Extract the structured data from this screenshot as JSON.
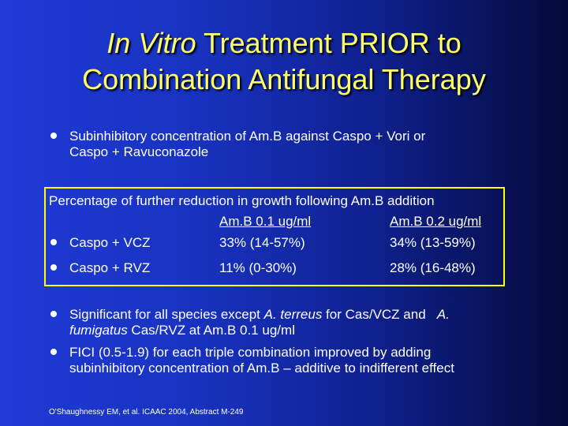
{
  "title": {
    "italic": "In Vitro",
    "line1_rest": " Treatment PRIOR to",
    "line2": "Combination Antifungal Therapy"
  },
  "bullet1": {
    "line1": "Subinhibitory concentration of Am.B against Caspo + Vori or",
    "line2": "Caspo + Ravuconazole"
  },
  "table": {
    "heading": "Percentage of further reduction in growth following Am.B addition",
    "columns": [
      "Am.B 0.1 ug/ml",
      "Am.B 0.2 ug/ml"
    ],
    "rows": [
      {
        "label": "Caspo + VCZ",
        "col1": "33%  (14-57%)",
        "col2": "34%  (13-59%)"
      },
      {
        "label": "Caspo + RVZ",
        "col1": "11%  (0-30%)",
        "col2": "28%  (16-48%)"
      }
    ]
  },
  "bullet3": {
    "t1": "Significant for all species except ",
    "i1": "A. terreus",
    "t2": " for Cas/VCZ and   ",
    "i2": "A.",
    "i3": "fumigatus",
    "t3": " Cas/RVZ at Am.B 0.1 ug/ml"
  },
  "bullet4": {
    "line1": "FICI (0.5-1.9) for each triple combination improved by adding",
    "line2": "subinhibitory concentration of Am.B – additive to indifferent effect"
  },
  "citation": "O'Shaughnessy EM, et al. ICAAC 2004, Abstract M-249",
  "colors": {
    "title": "#ffff66",
    "box_border": "#ffff00",
    "text": "#ffffff"
  }
}
